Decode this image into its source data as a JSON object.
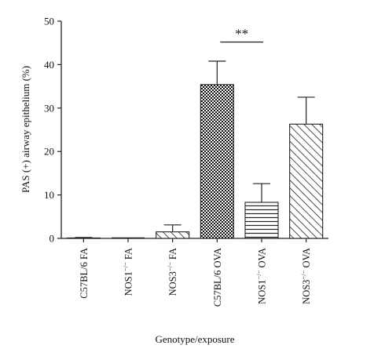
{
  "chart_data": {
    "type": "bar",
    "categories": [
      "C57BL/6 FA",
      "NOS1−/− FA",
      "NOS3−/− FA",
      "C57BL/6 OVA",
      "NOS1−/− OVA",
      "NOS3−/− OVA"
    ],
    "category_parts": [
      {
        "base": "C57BL/6 FA",
        "sup": "",
        "tail": ""
      },
      {
        "base": "NOS1",
        "sup": "−/−",
        "tail": " FA"
      },
      {
        "base": "NOS3",
        "sup": "−/−",
        "tail": " FA"
      },
      {
        "base": "C57BL/6 OVA",
        "sup": "",
        "tail": ""
      },
      {
        "base": "NOS1",
        "sup": "−/−",
        "tail": " OVA"
      },
      {
        "base": "NOS3",
        "sup": "−/−",
        "tail": " OVA"
      }
    ],
    "values": [
      0.1,
      0,
      1.5,
      35.4,
      8.3,
      26.3
    ],
    "errors": [
      0.1,
      0,
      1.6,
      5.4,
      4.3,
      6.2
    ],
    "patterns": [
      "none",
      "none",
      "diag-lines",
      "checker",
      "horizontal-lines",
      "diag-lines"
    ],
    "xlabel": "Genotype/exposure",
    "ylabel": "PAS (+) airway epithelium (%)",
    "ylim": [
      0,
      50
    ],
    "yticks": [
      0,
      10,
      20,
      30,
      40,
      50
    ],
    "grid": false,
    "significance": {
      "from_index": 3,
      "to_index": 4,
      "label": "**"
    }
  }
}
